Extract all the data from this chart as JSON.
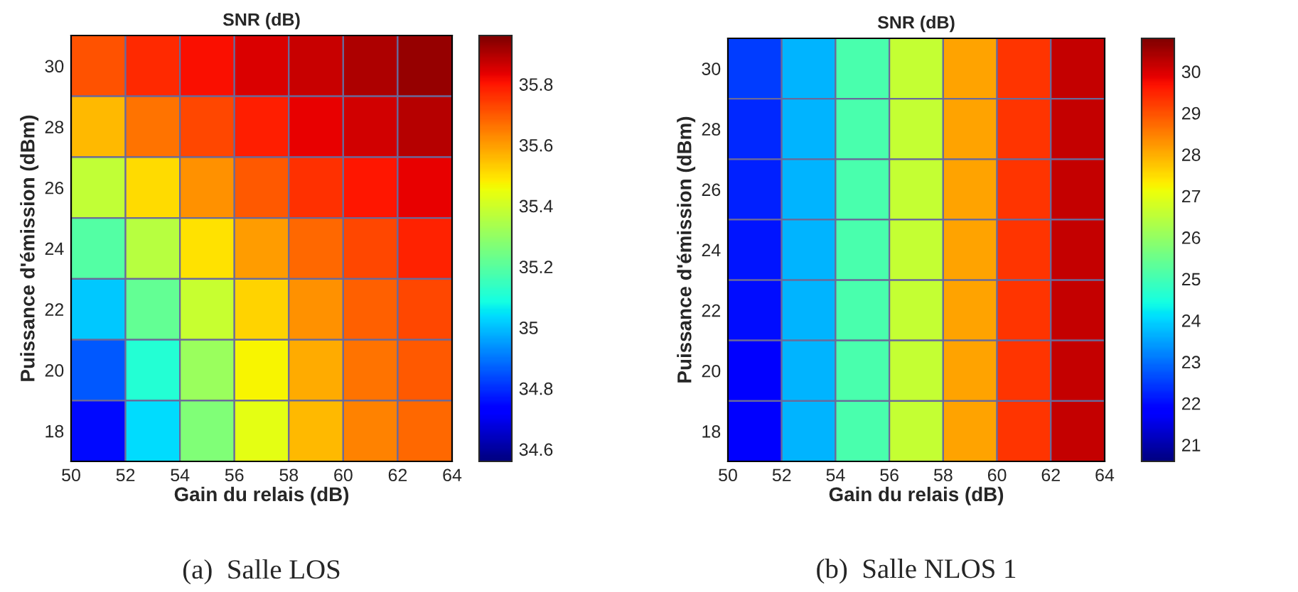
{
  "chart_data": [
    {
      "type": "heatmap",
      "title": "SNR (dB)",
      "xlabel": "Gain du relais (dB)",
      "ylabel": "Puissance d'émission (dBm)",
      "annotations": [
        "(a)  Salle LOS"
      ],
      "cells": [
        [
          35.71,
          35.77,
          35.81,
          35.85,
          35.87,
          35.9,
          35.93
        ],
        [
          35.56,
          35.66,
          35.73,
          35.79,
          35.83,
          35.86,
          35.89
        ],
        [
          35.38,
          35.51,
          35.62,
          35.7,
          35.76,
          35.8,
          35.83
        ],
        [
          35.19,
          35.36,
          35.5,
          35.6,
          35.68,
          35.73,
          35.78
        ],
        [
          35.01,
          35.22,
          35.39,
          35.52,
          35.62,
          35.69,
          35.73
        ],
        [
          34.86,
          35.11,
          35.31,
          35.47,
          35.58,
          35.66,
          35.7
        ],
        [
          34.75,
          35.04,
          35.27,
          35.44,
          35.56,
          35.64,
          35.68
        ]
      ],
      "xlim": [
        50,
        64
      ],
      "ylim": [
        17,
        31
      ],
      "xticks": [
        50,
        52,
        54,
        56,
        58,
        60,
        62,
        64
      ],
      "yticks": [
        18,
        20,
        22,
        24,
        26,
        28,
        30
      ],
      "clim": [
        34.56,
        35.96
      ],
      "cticks": [
        34.6,
        34.8,
        35,
        35.2,
        35.4,
        35.6,
        35.8
      ]
    },
    {
      "type": "heatmap",
      "title": "SNR (dB)",
      "xlabel": "Gain du relais (dB)",
      "ylabel": "Puissance d'émission (dBm)",
      "annotations": [
        "(b)  Salle NLOS 1"
      ],
      "cells": [
        [
          22.5,
          23.7,
          25.1,
          26.6,
          28.1,
          29.3,
          30.2
        ],
        [
          22.3,
          23.7,
          25.1,
          26.6,
          28.1,
          29.3,
          30.2
        ],
        [
          22.2,
          23.7,
          25.1,
          26.6,
          28.1,
          29.3,
          30.2
        ],
        [
          22.1,
          23.7,
          25.1,
          26.6,
          28.1,
          29.3,
          30.2
        ],
        [
          22,
          23.7,
          25.1,
          26.6,
          28.1,
          29.3,
          30.2
        ],
        [
          21.9,
          23.7,
          25.1,
          26.6,
          28.1,
          29.3,
          30.2
        ],
        [
          21.8,
          23.7,
          25.1,
          26.6,
          28.1,
          29.3,
          30.2
        ]
      ],
      "xlim": [
        50,
        64
      ],
      "ylim": [
        17,
        31
      ],
      "xticks": [
        50,
        52,
        54,
        56,
        58,
        60,
        62,
        64
      ],
      "yticks": [
        18,
        20,
        22,
        24,
        26,
        28,
        30
      ],
      "clim": [
        20.6,
        30.8
      ],
      "cticks": [
        21,
        22,
        23,
        24,
        25,
        26,
        27,
        28,
        29,
        30
      ]
    }
  ]
}
